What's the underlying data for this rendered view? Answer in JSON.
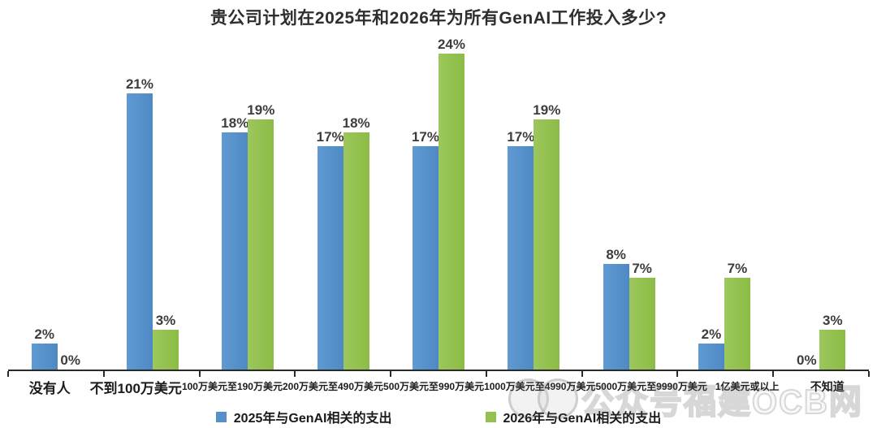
{
  "title": "贵公司计划在2025年和2026年为所有GenAI工作投入多少?",
  "watermark": {
    "text": "公众号福建OCB网"
  },
  "colors": {
    "series_2025": "#5590CB",
    "series_2026": "#94C04F",
    "axis": "#2b2b2b",
    "value_label": "#3d3d3d"
  },
  "chart_data": {
    "type": "bar",
    "title": "贵公司计划在2025年和2026年为所有GenAI工作投入多少?",
    "categories": [
      "没有人",
      "不到100万美元",
      "100万美元至190万美元",
      "200万美元至490万美元",
      "500万美元至990万美元",
      "1000万美元至4990万美元",
      "5000万美元至9990万美元",
      "1亿美元或以上",
      "不知道"
    ],
    "series": [
      {
        "name": "2025年与GenAI相关的支出",
        "color": "#5590CB",
        "css": "blue",
        "values": [
          2,
          21,
          18,
          17,
          17,
          17,
          8,
          2,
          0
        ]
      },
      {
        "name": "2026年与GenAI相关的支出",
        "color": "#94C04F",
        "css": "green",
        "values": [
          0,
          3,
          19,
          18,
          24,
          19,
          7,
          7,
          3
        ]
      }
    ],
    "value_suffix": "%",
    "xlabel": "",
    "ylabel": "",
    "ylim": [
      0,
      25
    ],
    "grid": false,
    "y_axis_shown": false,
    "legend_position": "bottom"
  }
}
